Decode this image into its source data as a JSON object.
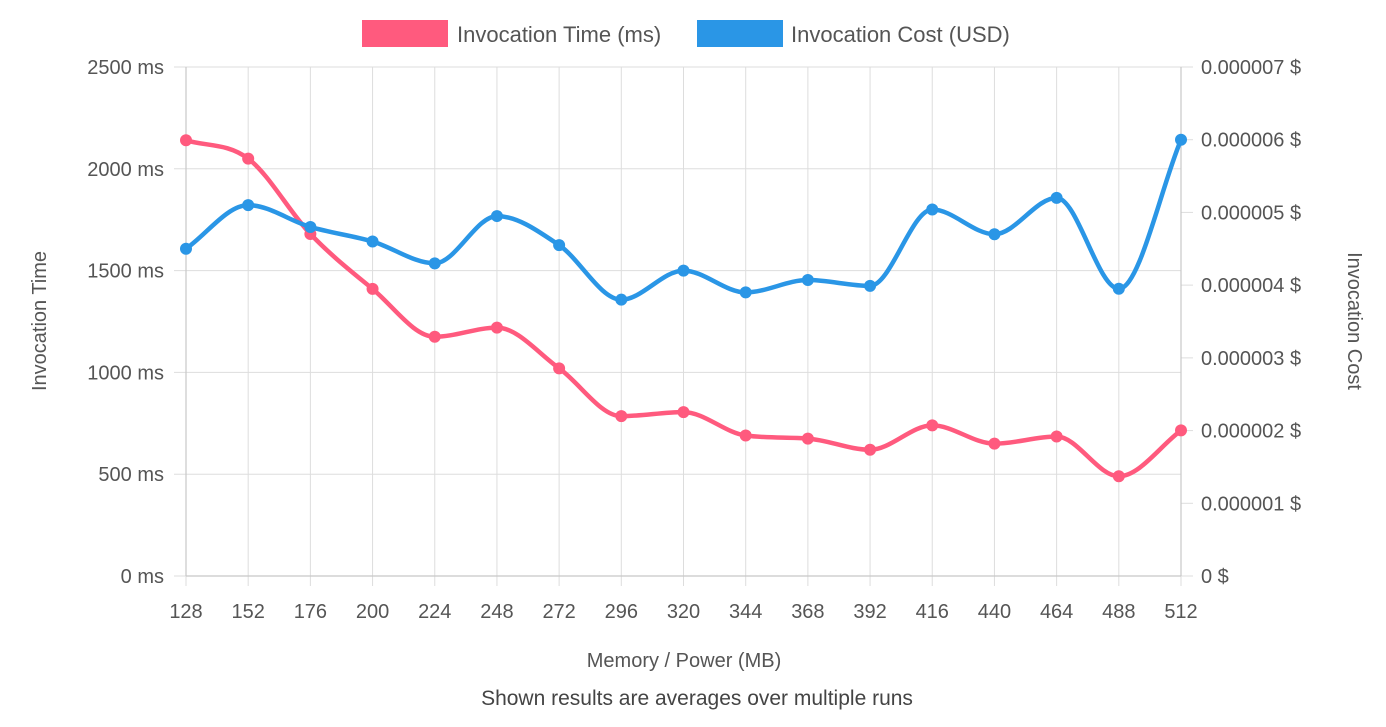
{
  "chart_data": {
    "type": "line",
    "x": [
      "128",
      "152",
      "176",
      "200",
      "224",
      "248",
      "272",
      "296",
      "320",
      "344",
      "368",
      "392",
      "416",
      "440",
      "464",
      "488",
      "512"
    ],
    "xlabel": "Memory / Power (MB)",
    "footnote": "Shown results are averages over multiple runs",
    "grid": true,
    "legend": "top-center",
    "y_left": {
      "label": "Invocation Time",
      "range": [
        0,
        2500
      ],
      "ticks": [
        "0 ms",
        "500 ms",
        "1000 ms",
        "1500 ms",
        "2000 ms",
        "2500 ms"
      ],
      "tick_values": [
        0,
        500,
        1000,
        1500,
        2000,
        2500
      ]
    },
    "y_right": {
      "label": "Invocation Cost",
      "range": [
        0,
        7e-06
      ],
      "ticks": [
        "0 $",
        "0.000001 $",
        "0.000002 $",
        "0.000003 $",
        "0.000004 $",
        "0.000005 $",
        "0.000006 $",
        "0.000007 $"
      ],
      "tick_values": [
        0,
        1e-06,
        2e-06,
        3e-06,
        4e-06,
        5e-06,
        6e-06,
        7e-06
      ]
    },
    "series": [
      {
        "name": "Invocation Time (ms)",
        "axis": "left",
        "color": "#ff5a7e",
        "values": [
          2140,
          2050,
          1680,
          1410,
          1175,
          1220,
          1020,
          785,
          805,
          690,
          675,
          620,
          740,
          650,
          685,
          490,
          715
        ]
      },
      {
        "name": "Invocation Cost (USD)",
        "axis": "right",
        "color": "#2a96e6",
        "values": [
          4.5e-06,
          5.1e-06,
          4.8e-06,
          4.6e-06,
          4.3e-06,
          4.95e-06,
          4.55e-06,
          3.8e-06,
          4.2e-06,
          3.9e-06,
          4.07e-06,
          3.99e-06,
          5.04e-06,
          4.7e-06,
          5.2e-06,
          3.95e-06,
          6e-06
        ]
      }
    ]
  }
}
